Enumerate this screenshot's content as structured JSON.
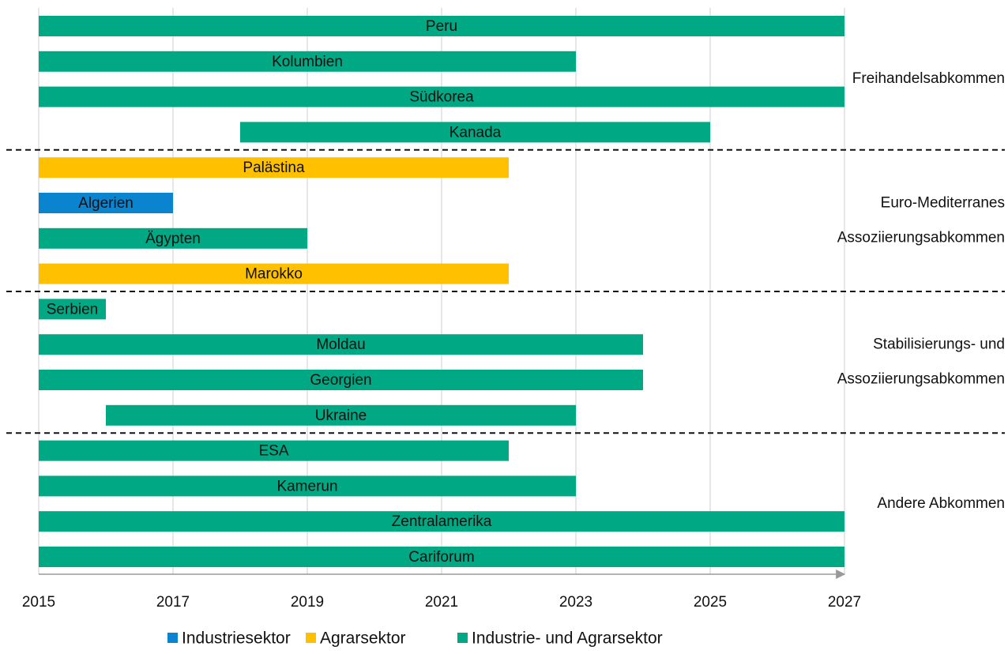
{
  "chart_data": {
    "type": "range_bar",
    "groups": [
      {
        "label": [
          "Freihandelsabkommen"
        ],
        "categories": [
          "Peru",
          "Kolumbien",
          "Südkorea",
          "Kanada"
        ]
      },
      {
        "label": [
          "Euro-Mediterranes",
          "Assoziierungsabkommen"
        ],
        "categories": [
          "Palästina",
          "Algerien",
          "Ägypten",
          "Marokko"
        ]
      },
      {
        "label": [
          "Stabilisierungs- und",
          "Assoziierungsabkommen"
        ],
        "categories": [
          "Serbien",
          "Moldau",
          "Georgien",
          "Ukraine"
        ]
      },
      {
        "label": [
          "Andere Abkommen"
        ],
        "categories": [
          "ESA",
          "Kamerun",
          "Zentralamerika",
          "Cariforum"
        ]
      }
    ],
    "series": [
      {
        "name": "Industriesektor",
        "color": "#0b84cf",
        "starts": [
          null,
          null,
          null,
          null,
          null,
          2015,
          null,
          null,
          null,
          null,
          null,
          null,
          null,
          null,
          null,
          null
        ],
        "ends": [
          null,
          null,
          null,
          null,
          null,
          2017,
          null,
          null,
          null,
          null,
          null,
          null,
          null,
          null,
          null,
          null
        ]
      },
      {
        "name": "Agrarsektor",
        "color": "#ffc000",
        "starts": [
          null,
          null,
          null,
          null,
          2015,
          null,
          null,
          2015,
          null,
          null,
          null,
          null,
          null,
          null,
          null,
          null
        ],
        "ends": [
          null,
          null,
          null,
          null,
          2022,
          null,
          null,
          2022,
          null,
          null,
          null,
          null,
          null,
          null,
          null,
          null
        ]
      },
      {
        "name": "Industrie- und Agrarsektor",
        "color": "#00a884",
        "starts": [
          2015,
          2015,
          2015,
          2018,
          null,
          null,
          2015,
          null,
          2015,
          2015,
          2015,
          2016,
          2015,
          2015,
          2015,
          2015
        ],
        "ends": [
          2027,
          2023,
          2027,
          2025,
          null,
          null,
          2019,
          null,
          2016,
          2024,
          2024,
          2023,
          2022,
          2023,
          2027,
          2027
        ]
      }
    ],
    "xlim": [
      2015,
      2027
    ],
    "xticks": [
      2015,
      2017,
      2019,
      2021,
      2023,
      2025,
      2027
    ],
    "grid": true
  }
}
